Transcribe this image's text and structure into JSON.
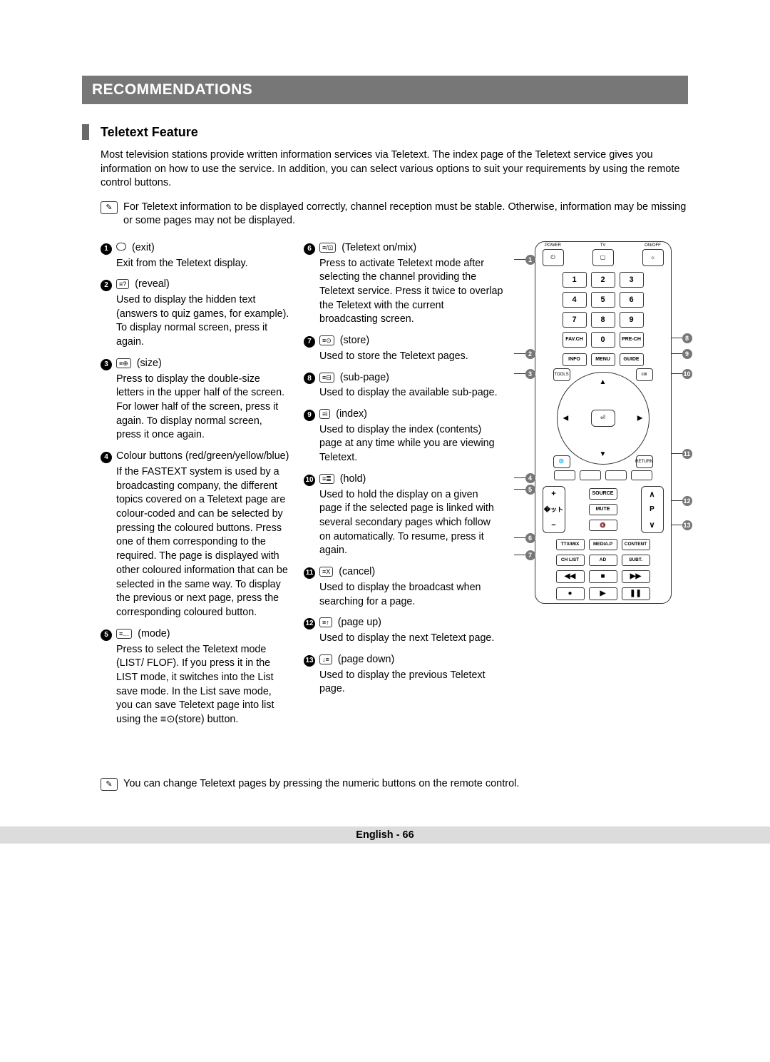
{
  "header": "RECOMMENDATIONS",
  "subhead": "Teletext Feature",
  "intro": "Most television stations provide written information services via Teletext. The index page of the Teletext service gives you information on how to use the service. In addition, you can select various options to suit your requirements by using the remote control buttons.",
  "note1": "For Teletext information to be displayed correctly, channel reception must be stable. Otherwise, information may be missing or some pages may not be displayed.",
  "items_left": [
    {
      "n": "1",
      "sym": "circle",
      "title": "(exit)",
      "desc": "Exit from the Teletext display."
    },
    {
      "n": "2",
      "sym": "≡?",
      "title": "(reveal)",
      "desc": "Used to display the hidden text (answers to quiz games, for example). To display normal screen, press it again."
    },
    {
      "n": "3",
      "sym": "≡⊕",
      "title": "(size)",
      "desc": "Press to display the double-size letters in the upper half of the screen. For lower half of the screen, press it again. To display normal screen, press it once again."
    },
    {
      "n": "4",
      "sym": "",
      "title": "Colour buttons (red/green/yellow/blue)",
      "desc": "If the FASTEXT system is used by a broadcasting company, the different topics covered on a Teletext page are colour-coded and can be selected by pressing the coloured buttons. Press one of them corresponding to the required. The page is displayed with other coloured information that can be selected in the same way. To display the previous or next page, press the corresponding coloured button."
    },
    {
      "n": "5",
      "sym": "≡…",
      "title": "(mode)",
      "desc": "Press to select the Teletext mode (LIST/ FLOF). If you press it in the LIST mode, it switches into the List save mode. In the List save mode, you can save Teletext page into list using the ≡⊙(store) button."
    }
  ],
  "items_right": [
    {
      "n": "6",
      "sym": "≡/⊡",
      "title": "(Teletext on/mix)",
      "desc": "Press to activate Teletext mode after selecting the channel providing the Teletext service. Press it twice to overlap the Teletext with the current broadcasting screen."
    },
    {
      "n": "7",
      "sym": "≡⊙",
      "title": "(store)",
      "desc": "Used to store the Teletext pages."
    },
    {
      "n": "8",
      "sym": "≡⊟",
      "title": "(sub-page)",
      "desc": "Used to display the available sub-page."
    },
    {
      "n": "9",
      "sym": "≡i",
      "title": "(index)",
      "desc": "Used to display the index (contents) page at any time while you are viewing Teletext."
    },
    {
      "n": "10",
      "sym": "≡≣",
      "title": "(hold)",
      "desc": "Used to hold the display on a given page if the selected page is linked with several secondary pages which follow on automatically. To resume, press it again."
    },
    {
      "n": "11",
      "sym": "≡X",
      "title": "(cancel)",
      "desc": "Used to display the broadcast when searching for a page."
    },
    {
      "n": "12",
      "sym": "≡↑",
      "title": "(page up)",
      "desc": "Used to display the next Teletext page."
    },
    {
      "n": "13",
      "sym": "↓≡",
      "title": "(page down)",
      "desc": "Used to display the previous Teletext page."
    }
  ],
  "note2": "You can change Teletext pages by pressing the numeric buttons on the remote control.",
  "footer": "English - 66",
  "remote": {
    "power": "POWER",
    "tv": "TV",
    "onoff": "ON/OFF",
    "keys": [
      "1",
      "2",
      "3",
      "4",
      "5",
      "6",
      "7",
      "8",
      "9"
    ],
    "fav": "FAV.CH",
    "zero": "0",
    "prech": "PRE-CH",
    "info": "INFO",
    "menu": "MENU",
    "guide": "GUIDE",
    "tools": "TOOLS",
    "return": "RETURN",
    "enter": "⏎",
    "source": "SOURCE",
    "mute": "MUTE",
    "vol_plus": "+",
    "vol_minus": "−",
    "ch_up": "∧",
    "ch_down": "∨",
    "p": "P",
    "ttx": "TTX/MIX",
    "media": "MEDIA.P",
    "content": "CONTENT",
    "chlist": "CH LIST",
    "ad": "AD",
    "subt": "SUBT.",
    "rw": "◀◀",
    "stop": "■",
    "ff": "▶▶",
    "rec": "●",
    "play": "▶",
    "pause": "❚❚"
  },
  "colors": {
    "header_bg": "#777777",
    "header_fg": "#ffffff",
    "block": "#6a6a6a",
    "text": "#000000",
    "footer_bg": "#dcdcdc",
    "num_bg": "#000000",
    "callout_bg": "#777777"
  }
}
